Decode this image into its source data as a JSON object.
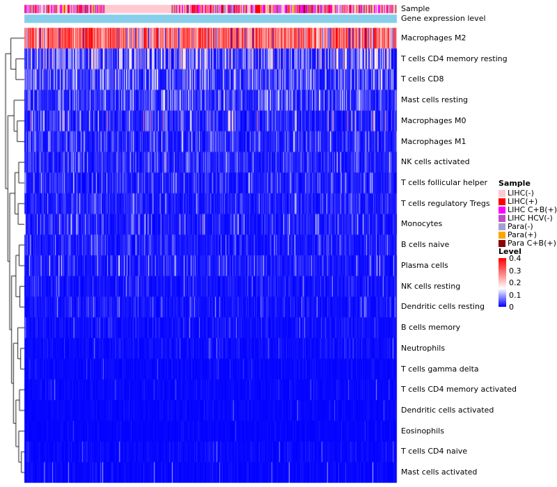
{
  "annotations": {
    "sample_label": "Sample",
    "gene_label": "Gene expression level"
  },
  "legend": {
    "sample_title": "Sample",
    "sample_items": [
      {
        "label": "LIHC(-)",
        "color": "#FFC9D2"
      },
      {
        "label": "LIHC(+)",
        "color": "#FF0000"
      },
      {
        "label": "LIHC C+B(+)",
        "color": "#FF00FF"
      },
      {
        "label": "LIHC HCV(-)",
        "color": "#BB4FC8"
      },
      {
        "label": "Para(-)",
        "color": "#A89FD0"
      },
      {
        "label": "Para(+)",
        "color": "#FFA500"
      },
      {
        "label": "Para C+B(+)",
        "color": "#8B0000"
      }
    ],
    "level_title": "Level",
    "level_ticks": [
      "0.4",
      "0.3",
      "0.2",
      "0.1",
      "0"
    ]
  },
  "chart_data": {
    "type": "heatmap",
    "title": "",
    "xlabel": "",
    "ylabel": "",
    "legend_position": "right",
    "n_samples": 535,
    "value_range": [
      0,
      0.4
    ],
    "colormap": {
      "low": "#0000FF",
      "mid": "#FFFFFF",
      "high": "#FF0000",
      "midpoint": 0.15
    },
    "column_annotations": [
      {
        "name": "Sample",
        "type": "categorical",
        "classes": [
          "LIHC(-)",
          "LIHC(+)",
          "LIHC C+B(+)",
          "LIHC HCV(-)",
          "Para(-)",
          "Para(+)",
          "Para C+B(+)"
        ],
        "weights": [
          0.3,
          0.22,
          0.2,
          0.06,
          0.12,
          0.06,
          0.04
        ],
        "pale_run": [
          115,
          210
        ]
      },
      {
        "name": "Gene expression level",
        "type": "continuous",
        "color": "#87CEEB"
      }
    ],
    "rows": [
      {
        "label": "Macrophages M2",
        "mean_level": 0.3,
        "base": 0.04,
        "hi_prob": 0.93,
        "hi": 0.3
      },
      {
        "label": "T cells CD4 memory resting",
        "mean_level": 0.09,
        "base": 0.035,
        "hi_prob": 0.28,
        "hi": 0.16
      },
      {
        "label": "T cells CD8",
        "mean_level": 0.08,
        "base": 0.03,
        "hi_prob": 0.22,
        "hi": 0.14
      },
      {
        "label": "Mast cells resting",
        "mean_level": 0.05,
        "base": 0.03,
        "hi_prob": 0.1,
        "hi": 0.12
      },
      {
        "label": "Macrophages M0",
        "mean_level": 0.05,
        "base": 0.025,
        "hi_prob": 0.07,
        "hi": 0.2
      },
      {
        "label": "Macrophages M1",
        "mean_level": 0.04,
        "base": 0.025,
        "hi_prob": 0.06,
        "hi": 0.1
      },
      {
        "label": "NK cells activated",
        "mean_level": 0.035,
        "base": 0.022,
        "hi_prob": 0.06,
        "hi": 0.1
      },
      {
        "label": "T cells follicular helper",
        "mean_level": 0.03,
        "base": 0.02,
        "hi_prob": 0.05,
        "hi": 0.1
      },
      {
        "label": "T cells regulatory Tregs",
        "mean_level": 0.03,
        "base": 0.02,
        "hi_prob": 0.05,
        "hi": 0.09
      },
      {
        "label": "Monocytes",
        "mean_level": 0.03,
        "base": 0.018,
        "hi_prob": 0.05,
        "hi": 0.15
      },
      {
        "label": "B cells naive",
        "mean_level": 0.025,
        "base": 0.016,
        "hi_prob": 0.04,
        "hi": 0.09
      },
      {
        "label": "Plasma cells",
        "mean_level": 0.027,
        "base": 0.016,
        "hi_prob": 0.05,
        "hi": 0.12
      },
      {
        "label": "NK cells resting",
        "mean_level": 0.02,
        "base": 0.014,
        "hi_prob": 0.03,
        "hi": 0.08
      },
      {
        "label": "Dendritic cells resting",
        "mean_level": 0.016,
        "base": 0.012,
        "hi_prob": 0.03,
        "hi": 0.08
      },
      {
        "label": "B cells memory",
        "mean_level": 0.012,
        "base": 0.01,
        "hi_prob": 0.02,
        "hi": 0.07
      },
      {
        "label": "Neutrophils",
        "mean_level": 0.009,
        "base": 0.008,
        "hi_prob": 0.02,
        "hi": 0.08
      },
      {
        "label": "T cells gamma delta",
        "mean_level": 0.005,
        "base": 0.005,
        "hi_prob": 0.012,
        "hi": 0.06
      },
      {
        "label": "T cells CD4 memory activated",
        "mean_level": 0.005,
        "base": 0.005,
        "hi_prob": 0.012,
        "hi": 0.06
      },
      {
        "label": "Dendritic cells activated",
        "mean_level": 0.003,
        "base": 0.004,
        "hi_prob": 0.008,
        "hi": 0.05
      },
      {
        "label": "Eosinophils",
        "mean_level": 0.003,
        "base": 0.003,
        "hi_prob": 0.008,
        "hi": 0.05
      },
      {
        "label": "T cells CD4 naive",
        "mean_level": 0.006,
        "base": 0.005,
        "hi_prob": 0.015,
        "hi": 0.07
      },
      {
        "label": "Mast cells activated",
        "mean_level": 0.007,
        "base": 0.005,
        "hi_prob": 0.02,
        "hi": 0.08
      }
    ]
  }
}
